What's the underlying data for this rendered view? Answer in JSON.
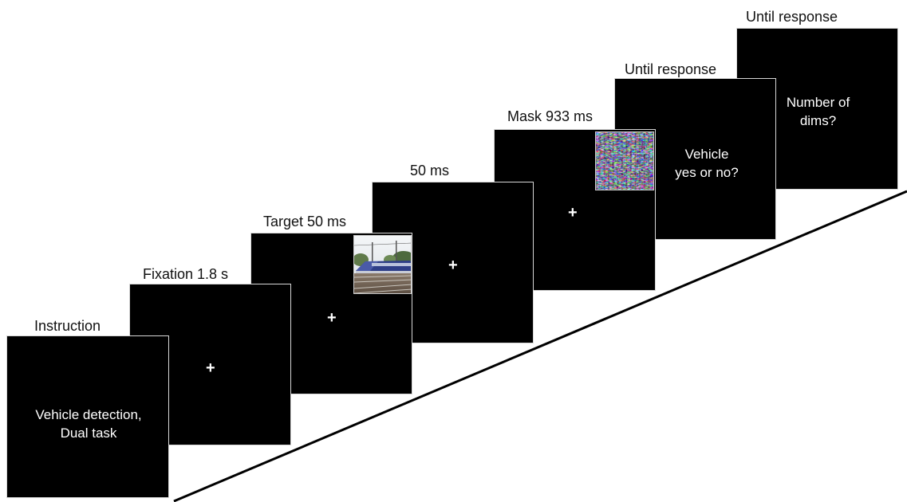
{
  "steps": [
    {
      "label": "Instruction",
      "screen_text": [
        "Vehicle detection,",
        "Dual task"
      ]
    },
    {
      "label": "Fixation 1.8 s",
      "fixation": "+"
    },
    {
      "label": "Target 50 ms",
      "fixation": "+",
      "image": "train-photo"
    },
    {
      "label": "50 ms",
      "fixation": "+"
    },
    {
      "label": "Mask 933 ms",
      "fixation": "+",
      "image": "noise-mask"
    },
    {
      "label": "Until response",
      "screen_text": [
        "Vehicle",
        "yes or no?"
      ]
    },
    {
      "label": "Until response",
      "screen_text": [
        "Number of",
        "dims?"
      ]
    }
  ]
}
